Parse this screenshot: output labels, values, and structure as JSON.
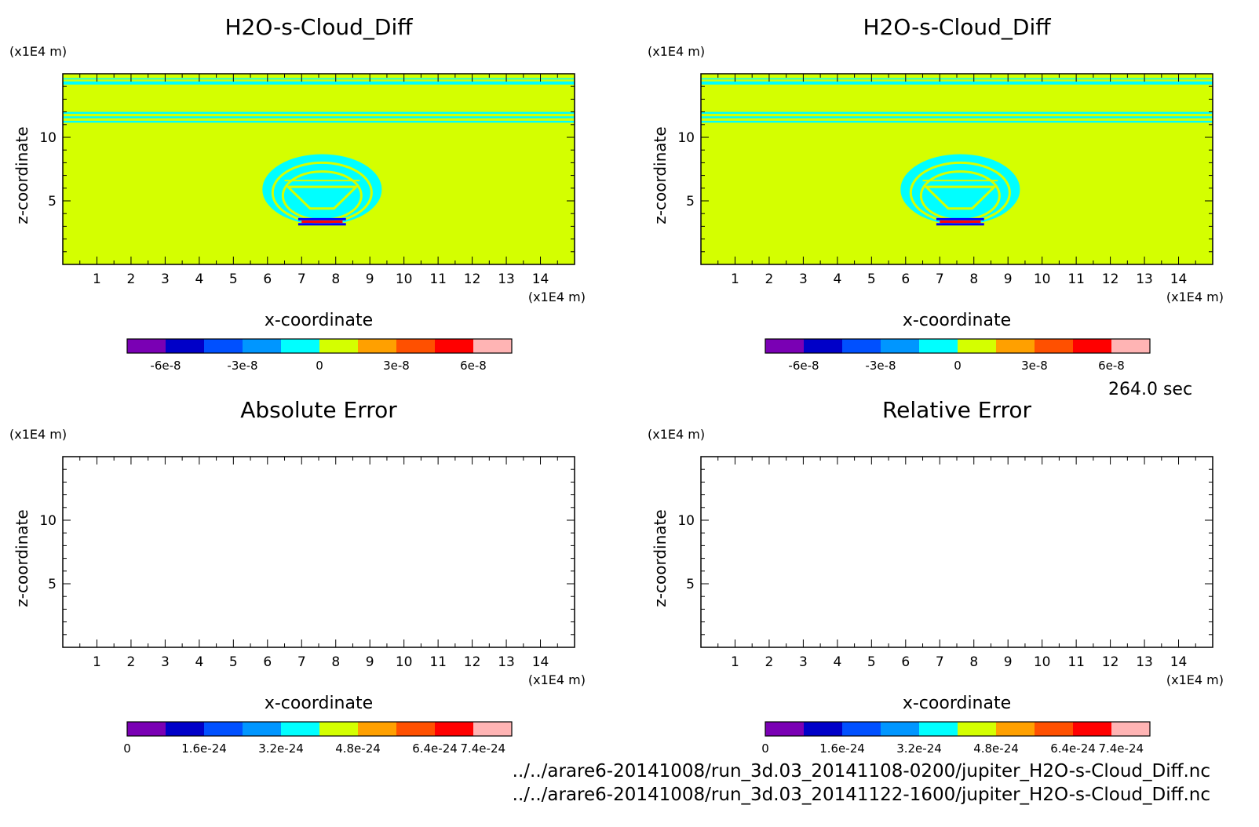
{
  "time_label": "264.0 sec",
  "file_paths": [
    "../../arare6-20141008/run_3d.03_20141108-0200/jupiter_H2O-s-Cloud_Diff.nc",
    "../../arare6-20141008/run_3d.03_20141122-1600/jupiter_H2O-s-Cloud_Diff.nc"
  ],
  "colors": {
    "field_background": "#d4ff00",
    "cloud": "#00ffff",
    "positive_accent": "#ff0000",
    "negative_accent": "#0000ff"
  },
  "chart_data": [
    {
      "type": "heatmap",
      "title": "H2O-s-Cloud_Diff",
      "xlabel": "x-coordinate",
      "ylabel": "z-coordinate",
      "x_unit": "(x1E4 m)",
      "y_unit": "(x1E4 m)",
      "xlim": [
        0,
        15
      ],
      "ylim": [
        0,
        15
      ],
      "x_ticks": [
        1,
        2,
        3,
        4,
        5,
        6,
        7,
        8,
        9,
        10,
        11,
        12,
        13,
        14
      ],
      "y_ticks": [
        5,
        10
      ],
      "filled": true,
      "colorbar": {
        "colors": [
          "#7a00b4",
          "#0000c8",
          "#0050ff",
          "#0096ff",
          "#00ffff",
          "#d4ff00",
          "#ffa000",
          "#ff5000",
          "#ff0000",
          "#ffb4b4"
        ],
        "tick_labels": [
          "-6e-8",
          "-3e-8",
          "0",
          "3e-8",
          "6e-8"
        ],
        "tick_positions": [
          1,
          3,
          5,
          7,
          9
        ]
      }
    },
    {
      "type": "heatmap",
      "title": "H2O-s-Cloud_Diff",
      "xlabel": "x-coordinate",
      "ylabel": "z-coordinate",
      "x_unit": "(x1E4 m)",
      "y_unit": "(x1E4 m)",
      "xlim": [
        0,
        15
      ],
      "ylim": [
        0,
        15
      ],
      "x_ticks": [
        1,
        2,
        3,
        4,
        5,
        6,
        7,
        8,
        9,
        10,
        11,
        12,
        13,
        14
      ],
      "y_ticks": [
        5,
        10
      ],
      "filled": true,
      "colorbar": {
        "colors": [
          "#7a00b4",
          "#0000c8",
          "#0050ff",
          "#0096ff",
          "#00ffff",
          "#d4ff00",
          "#ffa000",
          "#ff5000",
          "#ff0000",
          "#ffb4b4"
        ],
        "tick_labels": [
          "-6e-8",
          "-3e-8",
          "0",
          "3e-8",
          "6e-8"
        ],
        "tick_positions": [
          1,
          3,
          5,
          7,
          9
        ]
      }
    },
    {
      "type": "heatmap",
      "title": "Absolute Error",
      "xlabel": "x-coordinate",
      "ylabel": "z-coordinate",
      "x_unit": "(x1E4 m)",
      "y_unit": "(x1E4 m)",
      "xlim": [
        0,
        15
      ],
      "ylim": [
        0,
        15
      ],
      "x_ticks": [
        1,
        2,
        3,
        4,
        5,
        6,
        7,
        8,
        9,
        10,
        11,
        12,
        13,
        14
      ],
      "y_ticks": [
        5,
        10
      ],
      "filled": false,
      "colorbar": {
        "colors": [
          "#7a00b4",
          "#0000c8",
          "#0050ff",
          "#0096ff",
          "#00ffff",
          "#d4ff00",
          "#ffa000",
          "#ff5000",
          "#ff0000",
          "#ffb4b4"
        ],
        "tick_labels": [
          "0",
          "1.6e-24",
          "3.2e-24",
          "4.8e-24",
          "6.4e-24",
          "7.4e-24"
        ],
        "tick_positions": [
          0,
          2,
          4,
          6,
          8,
          9.25
        ]
      }
    },
    {
      "type": "heatmap",
      "title": "Relative Error",
      "xlabel": "x-coordinate",
      "ylabel": "z-coordinate",
      "x_unit": "(x1E4 m)",
      "y_unit": "(x1E4 m)",
      "xlim": [
        0,
        15
      ],
      "ylim": [
        0,
        15
      ],
      "x_ticks": [
        1,
        2,
        3,
        4,
        5,
        6,
        7,
        8,
        9,
        10,
        11,
        12,
        13,
        14
      ],
      "y_ticks": [
        5,
        10
      ],
      "filled": false,
      "colorbar": {
        "colors": [
          "#7a00b4",
          "#0000c8",
          "#0050ff",
          "#0096ff",
          "#00ffff",
          "#d4ff00",
          "#ffa000",
          "#ff5000",
          "#ff0000",
          "#ffb4b4"
        ],
        "tick_labels": [
          "0",
          "1.6e-24",
          "3.2e-24",
          "4.8e-24",
          "6.4e-24",
          "7.4e-24"
        ],
        "tick_positions": [
          0,
          2,
          4,
          6,
          8,
          9.25
        ]
      }
    }
  ]
}
